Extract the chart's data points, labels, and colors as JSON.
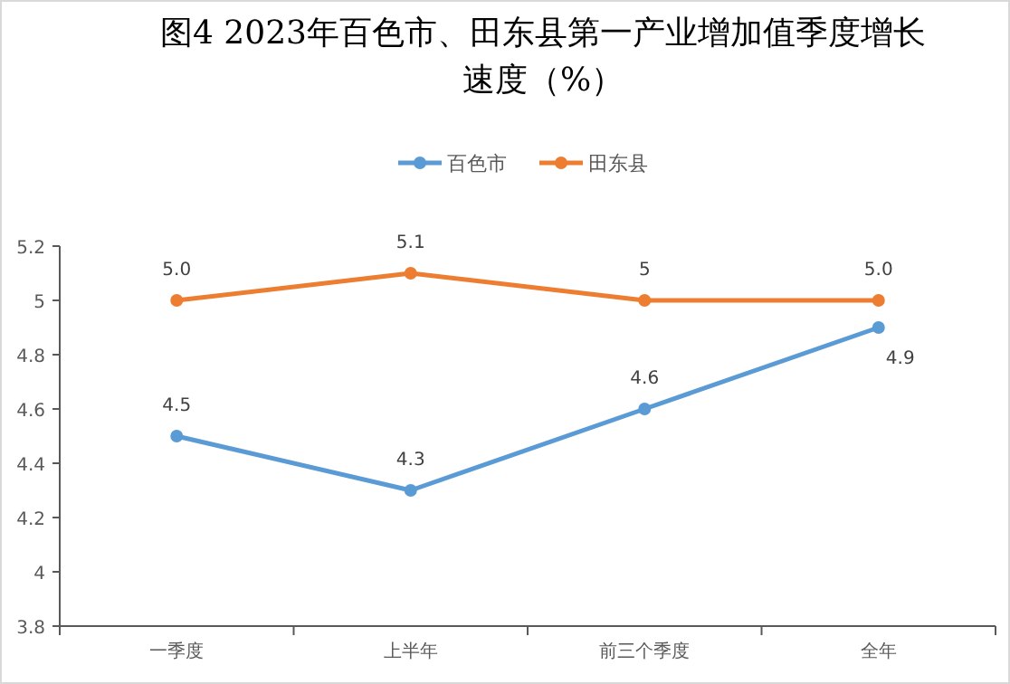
{
  "chart_data": {
    "type": "line",
    "title": "图4  2023年百色市、田东县第一产业增加值季度增长速度（%）",
    "categories": [
      "一季度",
      "上半年",
      "前三个季度",
      "全年"
    ],
    "series": [
      {
        "name": "百色市",
        "color": "#5b9bd5",
        "values": [
          4.5,
          4.3,
          4.6,
          4.9
        ],
        "value_labels": [
          "4.5",
          "4.3",
          "4.6",
          "4.9"
        ]
      },
      {
        "name": "田东县",
        "color": "#ed7d31",
        "values": [
          5.0,
          5.1,
          5,
          5.0
        ],
        "value_labels": [
          "5.0",
          "5.1",
          "5",
          "5.0"
        ]
      }
    ],
    "ylim": [
      3.8,
      5.2
    ],
    "yticks": [
      3.8,
      4,
      4.2,
      4.4,
      4.6,
      4.8,
      5,
      5.2
    ],
    "legend": "top",
    "marker": "circle"
  }
}
